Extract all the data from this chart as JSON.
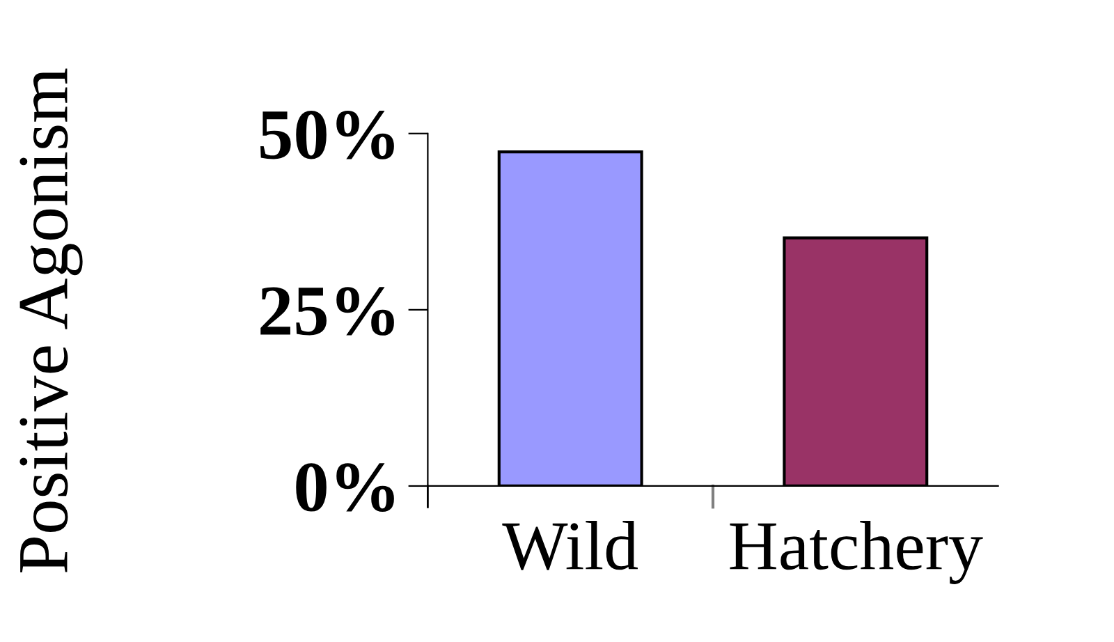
{
  "chart_data": {
    "type": "bar",
    "ylabel": "Positive Agonism",
    "categories": [
      "Wild",
      "Hatchery"
    ],
    "values": [
      47.4,
      35.2
    ],
    "colors": [
      "#9999ff",
      "#993366"
    ],
    "ylim": [
      0,
      50
    ],
    "yticks": [
      {
        "value": 0,
        "label": "0%"
      },
      {
        "value": 25,
        "label": "25%"
      },
      {
        "value": 50,
        "label": "50%"
      }
    ],
    "grid": false
  }
}
